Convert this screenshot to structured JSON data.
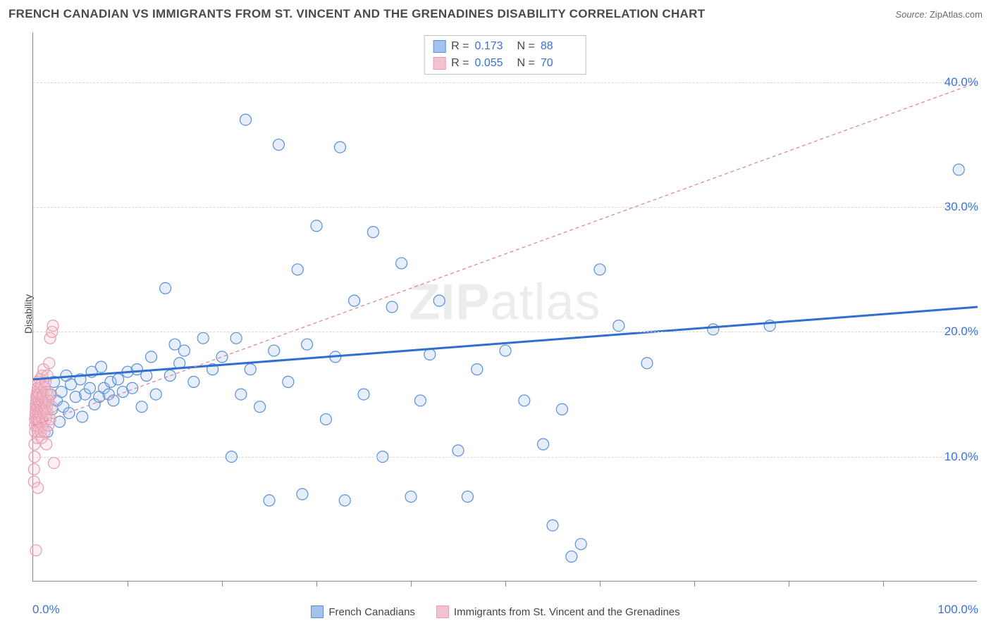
{
  "header": {
    "title": "FRENCH CANADIAN VS IMMIGRANTS FROM ST. VINCENT AND THE GRENADINES DISABILITY CORRELATION CHART",
    "source_label": "Source:",
    "source_value": "ZipAtlas.com"
  },
  "chart": {
    "type": "scatter",
    "y_axis_label": "Disability",
    "xlim": [
      0,
      100
    ],
    "ylim": [
      0,
      44
    ],
    "x_min_label": "0.0%",
    "x_max_label": "100.0%",
    "y_ticks": [
      {
        "v": 10,
        "label": "10.0%"
      },
      {
        "v": 20,
        "label": "20.0%"
      },
      {
        "v": 30,
        "label": "30.0%"
      },
      {
        "v": 40,
        "label": "40.0%"
      }
    ],
    "x_tick_step": 10,
    "grid_color": "#d8d8d8",
    "axis_color": "#888888",
    "background_color": "#ffffff",
    "tick_text_color": "#3a71d6",
    "marker_radius": 8,
    "marker_stroke_width": 1.2,
    "marker_fill_opacity": 0.28,
    "watermark": "ZIPatlas",
    "series": [
      {
        "name": "French Canadians",
        "color_stroke": "#5a8fd8",
        "color_fill": "#a3c3ee",
        "trend": {
          "x1": 0,
          "y1": 16.2,
          "x2": 100,
          "y2": 22.0,
          "width": 3,
          "dash": "none",
          "color": "#2f6fd0"
        },
        "stats": {
          "R_label": "R =",
          "R": "0.173",
          "N_label": "N =",
          "N": "88"
        },
        "points": [
          [
            1.0,
            13.0
          ],
          [
            1.2,
            14.2
          ],
          [
            1.5,
            12.0
          ],
          [
            1.8,
            15.0
          ],
          [
            2.0,
            13.8
          ],
          [
            2.2,
            16.0
          ],
          [
            2.5,
            14.5
          ],
          [
            2.8,
            12.8
          ],
          [
            3.0,
            15.2
          ],
          [
            3.2,
            14.0
          ],
          [
            3.5,
            16.5
          ],
          [
            3.8,
            13.5
          ],
          [
            4.0,
            15.8
          ],
          [
            4.5,
            14.8
          ],
          [
            5.0,
            16.2
          ],
          [
            5.2,
            13.2
          ],
          [
            5.5,
            15.0
          ],
          [
            6.0,
            15.5
          ],
          [
            6.2,
            16.8
          ],
          [
            6.5,
            14.2
          ],
          [
            7.0,
            14.8
          ],
          [
            7.2,
            17.2
          ],
          [
            7.5,
            15.5
          ],
          [
            8.0,
            15.0
          ],
          [
            8.2,
            16.0
          ],
          [
            8.5,
            14.5
          ],
          [
            9.0,
            16.2
          ],
          [
            9.5,
            15.2
          ],
          [
            10.0,
            16.8
          ],
          [
            10.5,
            15.5
          ],
          [
            11.0,
            17.0
          ],
          [
            11.5,
            14.0
          ],
          [
            12.0,
            16.5
          ],
          [
            12.5,
            18.0
          ],
          [
            13.0,
            15.0
          ],
          [
            14.0,
            23.5
          ],
          [
            14.5,
            16.5
          ],
          [
            15.0,
            19.0
          ],
          [
            15.5,
            17.5
          ],
          [
            16.0,
            18.5
          ],
          [
            17.0,
            16.0
          ],
          [
            18.0,
            19.5
          ],
          [
            19.0,
            17.0
          ],
          [
            20.0,
            18.0
          ],
          [
            21.0,
            10.0
          ],
          [
            21.5,
            19.5
          ],
          [
            22.0,
            15.0
          ],
          [
            22.5,
            37.0
          ],
          [
            23.0,
            17.0
          ],
          [
            24.0,
            14.0
          ],
          [
            25.0,
            6.5
          ],
          [
            25.5,
            18.5
          ],
          [
            26.0,
            35.0
          ],
          [
            27.0,
            16.0
          ],
          [
            28.0,
            25.0
          ],
          [
            28.5,
            7.0
          ],
          [
            29.0,
            19.0
          ],
          [
            30.0,
            28.5
          ],
          [
            31.0,
            13.0
          ],
          [
            32.0,
            18.0
          ],
          [
            32.5,
            34.8
          ],
          [
            33.0,
            6.5
          ],
          [
            34.0,
            22.5
          ],
          [
            35.0,
            15.0
          ],
          [
            36.0,
            28.0
          ],
          [
            37.0,
            10.0
          ],
          [
            38.0,
            22.0
          ],
          [
            39.0,
            25.5
          ],
          [
            40.0,
            6.8
          ],
          [
            41.0,
            14.5
          ],
          [
            42.0,
            18.2
          ],
          [
            43.0,
            22.5
          ],
          [
            45.0,
            10.5
          ],
          [
            46.0,
            6.8
          ],
          [
            47.0,
            17.0
          ],
          [
            50.0,
            18.5
          ],
          [
            52.0,
            14.5
          ],
          [
            54.0,
            11.0
          ],
          [
            55.0,
            4.5
          ],
          [
            56.0,
            13.8
          ],
          [
            57.0,
            2.0
          ],
          [
            58.0,
            3.0
          ],
          [
            60.0,
            25.0
          ],
          [
            62.0,
            20.5
          ],
          [
            65.0,
            17.5
          ],
          [
            72.0,
            20.2
          ],
          [
            78.0,
            20.5
          ],
          [
            98.0,
            33.0
          ]
        ]
      },
      {
        "name": "Immigrants from St. Vincent and the Grenadines",
        "color_stroke": "#e89cb0",
        "color_fill": "#f5c1ce",
        "trend": {
          "x1": 0,
          "y1": 12.5,
          "x2": 100,
          "y2": 40.0,
          "width": 1.2,
          "dash": "5,4",
          "color": "#e27c9a"
        },
        "stats": {
          "R_label": "R =",
          "R": "0.055",
          "N_label": "N =",
          "N": "70"
        },
        "points": [
          [
            0.1,
            8.0
          ],
          [
            0.1,
            9.0
          ],
          [
            0.15,
            10.0
          ],
          [
            0.15,
            11.0
          ],
          [
            0.2,
            12.0
          ],
          [
            0.2,
            12.5
          ],
          [
            0.2,
            13.0
          ],
          [
            0.25,
            13.2
          ],
          [
            0.25,
            13.5
          ],
          [
            0.3,
            13.8
          ],
          [
            0.3,
            14.0
          ],
          [
            0.3,
            14.2
          ],
          [
            0.35,
            14.5
          ],
          [
            0.35,
            14.8
          ],
          [
            0.4,
            15.0
          ],
          [
            0.4,
            13.0
          ],
          [
            0.4,
            12.5
          ],
          [
            0.45,
            15.2
          ],
          [
            0.45,
            11.5
          ],
          [
            0.5,
            15.5
          ],
          [
            0.5,
            14.0
          ],
          [
            0.5,
            12.0
          ],
          [
            0.55,
            13.5
          ],
          [
            0.55,
            16.0
          ],
          [
            0.6,
            14.5
          ],
          [
            0.6,
            13.0
          ],
          [
            0.65,
            15.0
          ],
          [
            0.65,
            12.8
          ],
          [
            0.7,
            14.2
          ],
          [
            0.7,
            16.2
          ],
          [
            0.75,
            13.5
          ],
          [
            0.75,
            15.5
          ],
          [
            0.8,
            14.0
          ],
          [
            0.8,
            12.0
          ],
          [
            0.85,
            13.8
          ],
          [
            0.85,
            15.8
          ],
          [
            0.9,
            14.5
          ],
          [
            0.9,
            11.5
          ],
          [
            0.95,
            13.0
          ],
          [
            0.95,
            16.5
          ],
          [
            1.0,
            14.8
          ],
          [
            1.0,
            12.5
          ],
          [
            1.05,
            15.0
          ],
          [
            1.1,
            13.5
          ],
          [
            1.1,
            17.0
          ],
          [
            1.15,
            14.0
          ],
          [
            1.2,
            15.5
          ],
          [
            1.2,
            12.0
          ],
          [
            1.25,
            13.8
          ],
          [
            1.3,
            16.0
          ],
          [
            1.3,
            14.5
          ],
          [
            1.35,
            13.0
          ],
          [
            1.4,
            15.2
          ],
          [
            1.4,
            11.0
          ],
          [
            1.45,
            14.0
          ],
          [
            1.5,
            16.5
          ],
          [
            1.5,
            13.5
          ],
          [
            1.55,
            15.0
          ],
          [
            1.6,
            12.5
          ],
          [
            1.6,
            14.5
          ],
          [
            1.7,
            17.5
          ],
          [
            1.8,
            13.0
          ],
          [
            1.8,
            19.5
          ],
          [
            1.9,
            15.0
          ],
          [
            2.0,
            20.0
          ],
          [
            2.0,
            14.0
          ],
          [
            2.1,
            20.5
          ],
          [
            2.2,
            9.5
          ],
          [
            0.5,
            7.5
          ],
          [
            0.3,
            2.5
          ]
        ]
      }
    ],
    "bottom_legend": [
      {
        "label": "French Canadians",
        "fill": "#a3c3ee",
        "stroke": "#5a8fd8"
      },
      {
        "label": "Immigrants from St. Vincent and the Grenadines",
        "fill": "#f5c1ce",
        "stroke": "#e89cb0"
      }
    ]
  }
}
